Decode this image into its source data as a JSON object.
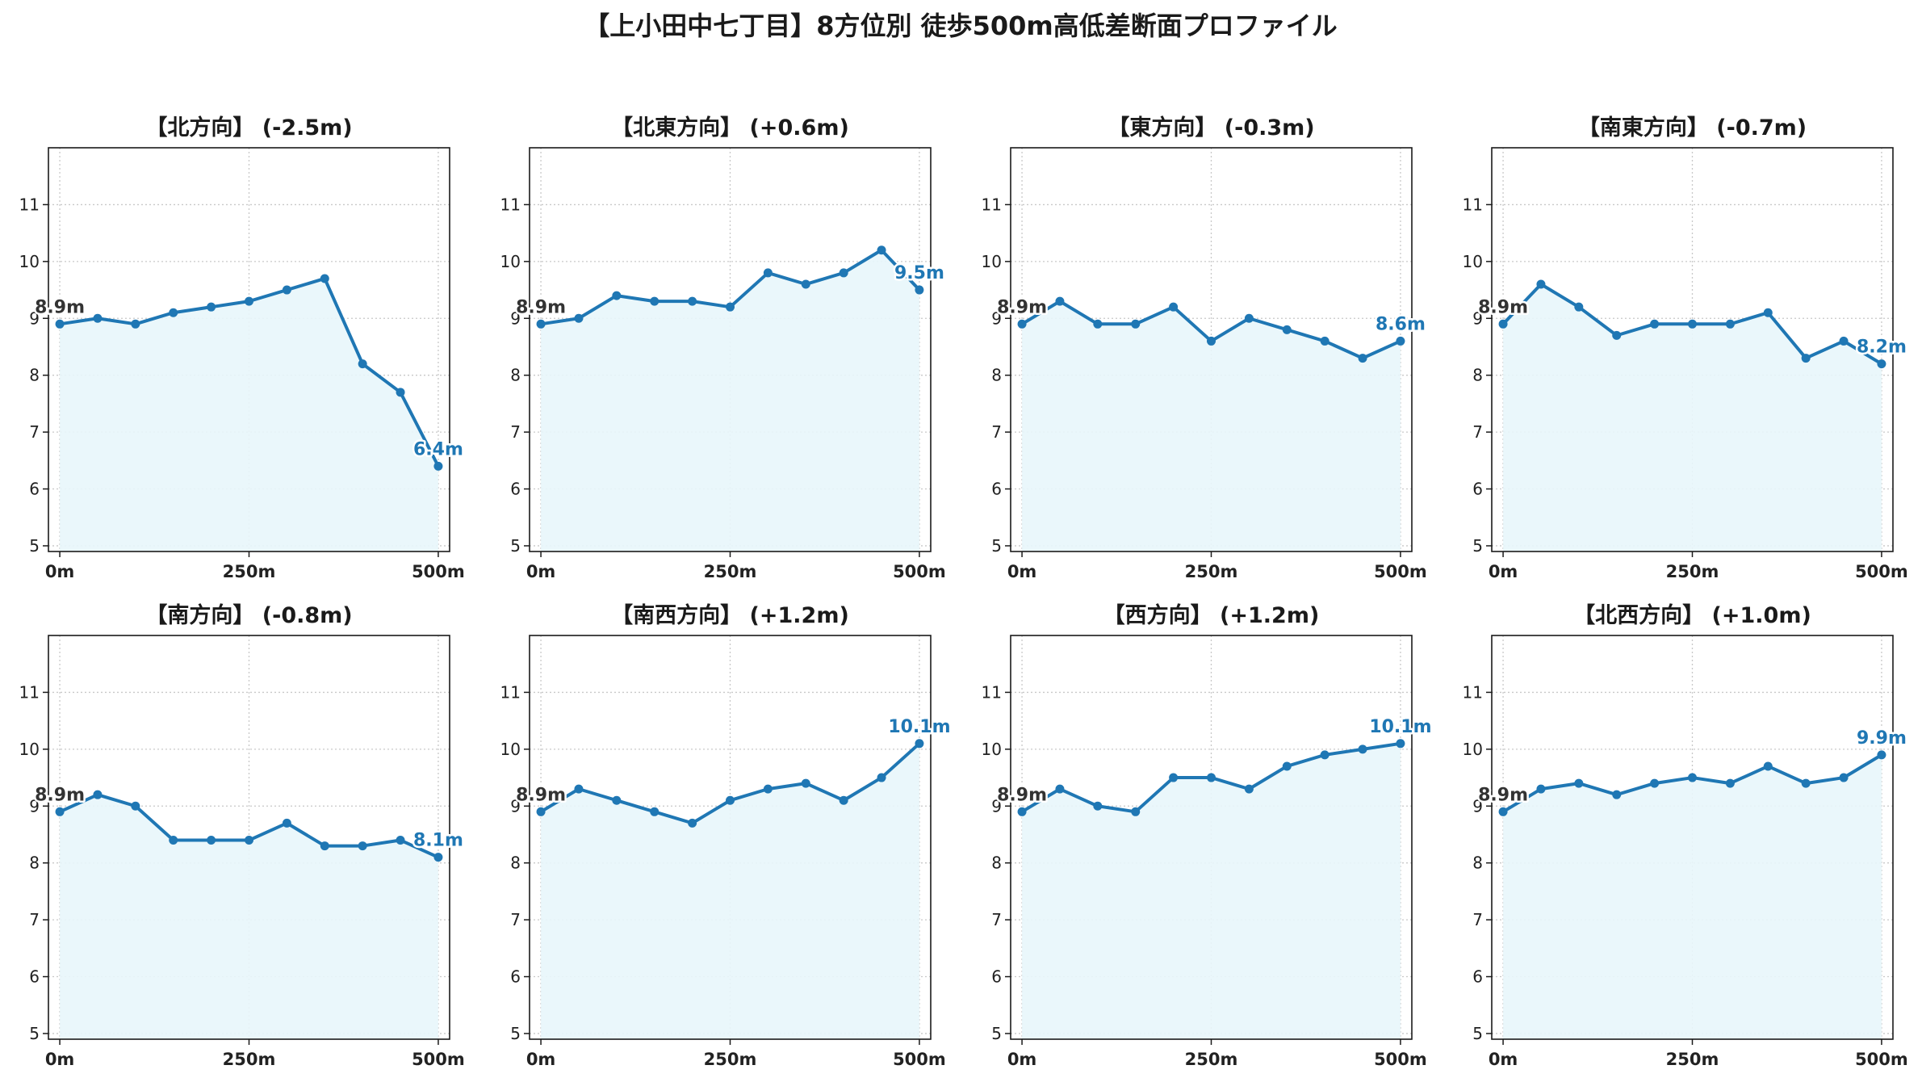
{
  "figure": {
    "title": "【上小田中七丁目】8方位別 徒歩500m高低差断面プロファイル"
  },
  "colors": {
    "line": "#1f77b4",
    "area": "#e8f6fb",
    "start_label": "#333333",
    "end_label": "#1f77b4"
  },
  "chart_data": [
    {
      "type": "area",
      "title": "【北方向】 (-2.5m)",
      "x": [
        0,
        50,
        100,
        150,
        200,
        250,
        300,
        350,
        400,
        450,
        500
      ],
      "values": [
        8.9,
        9.0,
        8.9,
        9.1,
        9.2,
        9.3,
        9.5,
        9.7,
        8.2,
        7.7,
        6.4
      ],
      "xticks": [
        "0m",
        "250m",
        "500m"
      ],
      "yticks": [
        "5",
        "6",
        "7",
        "8",
        "9",
        "10",
        "11"
      ],
      "ylim": [
        4.9,
        12.0
      ],
      "xlim": [
        -15,
        515
      ],
      "start_label": "8.9m",
      "end_label": "6.4m",
      "grid": true
    },
    {
      "type": "area",
      "title": "【北東方向】 (+0.6m)",
      "x": [
        0,
        50,
        100,
        150,
        200,
        250,
        300,
        350,
        400,
        450,
        500
      ],
      "values": [
        8.9,
        9.0,
        9.4,
        9.3,
        9.3,
        9.2,
        9.8,
        9.6,
        9.8,
        10.2,
        9.5
      ],
      "xticks": [
        "0m",
        "250m",
        "500m"
      ],
      "yticks": [
        "5",
        "6",
        "7",
        "8",
        "9",
        "10",
        "11"
      ],
      "ylim": [
        4.9,
        12.0
      ],
      "xlim": [
        -15,
        515
      ],
      "start_label": "8.9m",
      "end_label": "9.5m",
      "grid": true
    },
    {
      "type": "area",
      "title": "【東方向】 (-0.3m)",
      "x": [
        0,
        50,
        100,
        150,
        200,
        250,
        300,
        350,
        400,
        450,
        500
      ],
      "values": [
        8.9,
        9.3,
        8.9,
        8.9,
        9.2,
        8.6,
        9.0,
        8.8,
        8.6,
        8.3,
        8.6
      ],
      "xticks": [
        "0m",
        "250m",
        "500m"
      ],
      "yticks": [
        "5",
        "6",
        "7",
        "8",
        "9",
        "10",
        "11"
      ],
      "ylim": [
        4.9,
        12.0
      ],
      "xlim": [
        -15,
        515
      ],
      "start_label": "8.9m",
      "end_label": "8.6m",
      "grid": true
    },
    {
      "type": "area",
      "title": "【南東方向】 (-0.7m)",
      "x": [
        0,
        50,
        100,
        150,
        200,
        250,
        300,
        350,
        400,
        450,
        500
      ],
      "values": [
        8.9,
        9.6,
        9.2,
        8.7,
        8.9,
        8.9,
        8.9,
        9.1,
        8.3,
        8.6,
        8.2
      ],
      "xticks": [
        "0m",
        "250m",
        "500m"
      ],
      "yticks": [
        "5",
        "6",
        "7",
        "8",
        "9",
        "10",
        "11"
      ],
      "ylim": [
        4.9,
        12.0
      ],
      "xlim": [
        -15,
        515
      ],
      "start_label": "8.9m",
      "end_label": "8.2m",
      "grid": true
    },
    {
      "type": "area",
      "title": "【南方向】 (-0.8m)",
      "x": [
        0,
        50,
        100,
        150,
        200,
        250,
        300,
        350,
        400,
        450,
        500
      ],
      "values": [
        8.9,
        9.2,
        9.0,
        8.4,
        8.4,
        8.4,
        8.7,
        8.3,
        8.3,
        8.4,
        8.1
      ],
      "xticks": [
        "0m",
        "250m",
        "500m"
      ],
      "yticks": [
        "5",
        "6",
        "7",
        "8",
        "9",
        "10",
        "11"
      ],
      "ylim": [
        4.9,
        12.0
      ],
      "xlim": [
        -15,
        515
      ],
      "start_label": "8.9m",
      "end_label": "8.1m",
      "grid": true
    },
    {
      "type": "area",
      "title": "【南西方向】 (+1.2m)",
      "x": [
        0,
        50,
        100,
        150,
        200,
        250,
        300,
        350,
        400,
        450,
        500
      ],
      "values": [
        8.9,
        9.3,
        9.1,
        8.9,
        8.7,
        9.1,
        9.3,
        9.4,
        9.1,
        9.5,
        10.1
      ],
      "xticks": [
        "0m",
        "250m",
        "500m"
      ],
      "yticks": [
        "5",
        "6",
        "7",
        "8",
        "9",
        "10",
        "11"
      ],
      "ylim": [
        4.9,
        12.0
      ],
      "xlim": [
        -15,
        515
      ],
      "start_label": "8.9m",
      "end_label": "10.1m",
      "grid": true
    },
    {
      "type": "area",
      "title": "【西方向】 (+1.2m)",
      "x": [
        0,
        50,
        100,
        150,
        200,
        250,
        300,
        350,
        400,
        450,
        500
      ],
      "values": [
        8.9,
        9.3,
        9.0,
        8.9,
        9.5,
        9.5,
        9.3,
        9.7,
        9.9,
        10.0,
        10.1
      ],
      "xticks": [
        "0m",
        "250m",
        "500m"
      ],
      "yticks": [
        "5",
        "6",
        "7",
        "8",
        "9",
        "10",
        "11"
      ],
      "ylim": [
        4.9,
        12.0
      ],
      "xlim": [
        -15,
        515
      ],
      "start_label": "8.9m",
      "end_label": "10.1m",
      "grid": true
    },
    {
      "type": "area",
      "title": "【北西方向】 (+1.0m)",
      "x": [
        0,
        50,
        100,
        150,
        200,
        250,
        300,
        350,
        400,
        450,
        500
      ],
      "values": [
        8.9,
        9.3,
        9.4,
        9.2,
        9.4,
        9.5,
        9.4,
        9.7,
        9.4,
        9.5,
        9.9
      ],
      "xticks": [
        "0m",
        "250m",
        "500m"
      ],
      "yticks": [
        "5",
        "6",
        "7",
        "8",
        "9",
        "10",
        "11"
      ],
      "ylim": [
        4.9,
        12.0
      ],
      "xlim": [
        -15,
        515
      ],
      "start_label": "8.9m",
      "end_label": "9.9m",
      "grid": true
    }
  ]
}
